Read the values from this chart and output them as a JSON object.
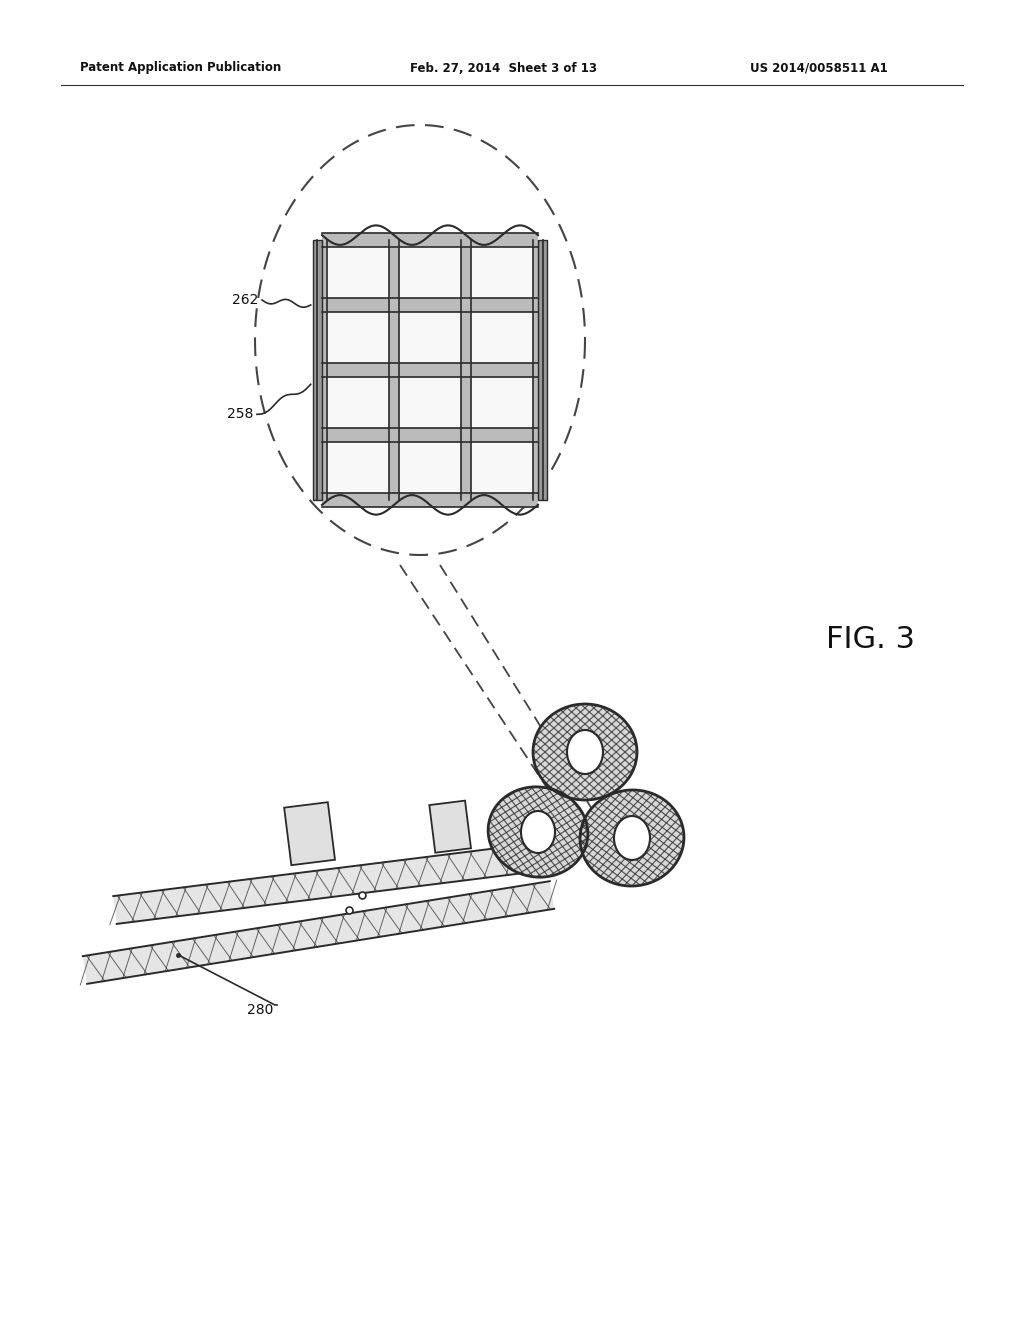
{
  "bg_color": "#ffffff",
  "header_left": "Patent Application Publication",
  "header_mid": "Feb. 27, 2014  Sheet 3 of 13",
  "header_right": "US 2014/0058511 A1",
  "fig_label": "FIG. 3",
  "label_262": "262",
  "label_258": "258",
  "label_280": "280",
  "line_color": "#2a2a2a",
  "dashed_color": "#444444",
  "mesh_color": "#333333",
  "ring_shade": "#bbbbbb",
  "cell_fill": "#f5f5f5"
}
